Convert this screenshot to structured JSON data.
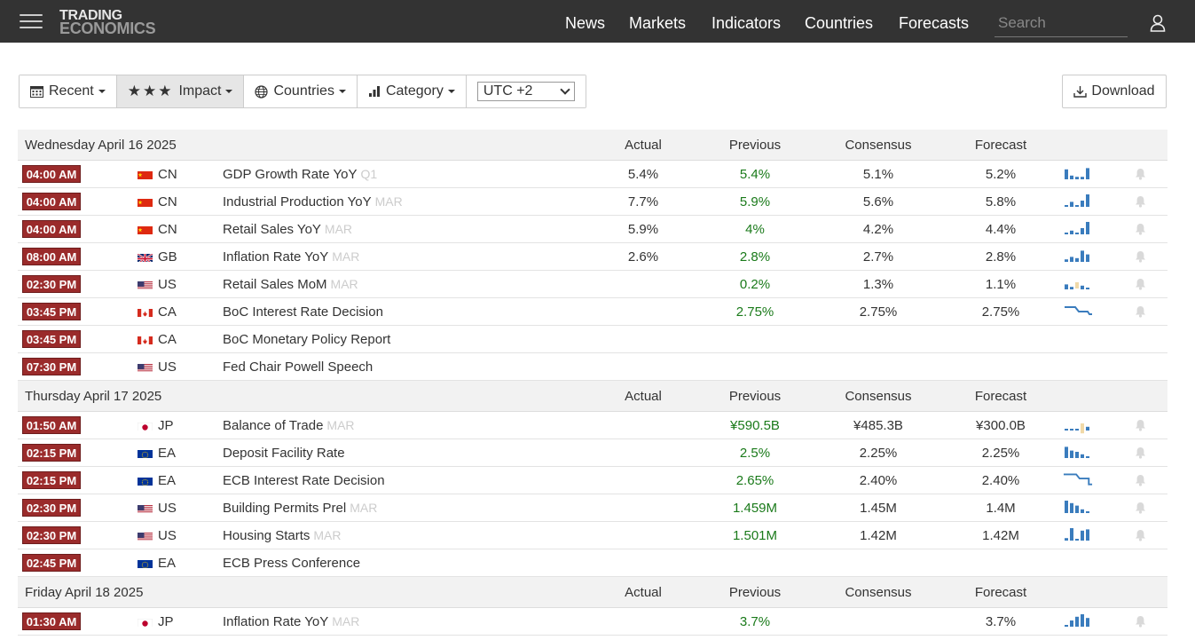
{
  "nav": {
    "logo_line1": "TRADING",
    "logo_line2": "ECONOMICS",
    "links": [
      "News",
      "Markets",
      "Indicators",
      "Countries",
      "Forecasts"
    ],
    "search_placeholder": "Search"
  },
  "toolbar": {
    "recent": "Recent",
    "impact": "Impact",
    "countries": "Countries",
    "category": "Category",
    "timezone": "UTC +2",
    "download": "Download"
  },
  "columns": {
    "actual": "Actual",
    "previous": "Previous",
    "consensus": "Consensus",
    "forecast": "Forecast"
  },
  "days": [
    {
      "date": "Wednesday April 16 2025",
      "events": [
        {
          "time": "04:00 AM",
          "country": "CN",
          "flag": "cn",
          "event": "GDP Growth Rate YoY",
          "ref": "Q1",
          "actual": "5.4%",
          "previous": "5.4%",
          "consensus": "5.1%",
          "forecast": "5.2%",
          "spark": [
            0.8,
            0.3,
            0.2,
            0.2,
            0.9
          ]
        },
        {
          "time": "04:00 AM",
          "country": "CN",
          "flag": "cn",
          "event": "Industrial Production YoY",
          "ref": "MAR",
          "actual": "7.7%",
          "previous": "5.9%",
          "consensus": "5.6%",
          "forecast": "5.8%",
          "spark": [
            0.1,
            0.4,
            0.1,
            0.5,
            1.0
          ]
        },
        {
          "time": "04:00 AM",
          "country": "CN",
          "flag": "cn",
          "event": "Retail Sales YoY",
          "ref": "MAR",
          "actual": "5.9%",
          "previous": "4%",
          "consensus": "4.2%",
          "forecast": "4.4%",
          "spark": [
            0.1,
            0.3,
            0.1,
            0.5,
            1.0
          ]
        },
        {
          "time": "08:00 AM",
          "country": "GB",
          "flag": "gb",
          "event": "Inflation Rate YoY",
          "ref": "MAR",
          "actual": "2.6%",
          "previous": "2.8%",
          "consensus": "2.7%",
          "forecast": "2.8%",
          "spark": [
            0.2,
            0.4,
            0.3,
            0.9,
            0.6
          ]
        },
        {
          "time": "02:30 PM",
          "country": "US",
          "flag": "us",
          "event": "Retail Sales MoM",
          "ref": "MAR",
          "actual": "",
          "previous": "0.2%",
          "consensus": "1.3%",
          "forecast": "1.1%",
          "spark": [
            0.4,
            0.2,
            -0.5,
            0.3,
            0.1
          ]
        },
        {
          "time": "03:45 PM",
          "country": "CA",
          "flag": "ca",
          "event": "BoC Interest Rate Decision",
          "ref": "",
          "actual": "",
          "previous": "2.75%",
          "consensus": "2.75%",
          "forecast": "2.75%",
          "spark": "step"
        },
        {
          "time": "03:45 PM",
          "country": "CA",
          "flag": "ca",
          "event": "BoC Monetary Policy Report",
          "ref": "",
          "actual": "",
          "previous": "",
          "consensus": "",
          "forecast": "",
          "spark": null
        },
        {
          "time": "07:30 PM",
          "country": "US",
          "flag": "us",
          "event": "Fed Chair Powell Speech",
          "ref": "",
          "actual": "",
          "previous": "",
          "consensus": "",
          "forecast": "",
          "spark": null
        }
      ]
    },
    {
      "date": "Thursday April 17 2025",
      "events": [
        {
          "time": "01:50 AM",
          "country": "JP",
          "flag": "jp",
          "event": "Balance of Trade",
          "ref": "MAR",
          "actual": "",
          "previous": "¥590.5B",
          "consensus": "¥485.3B",
          "forecast": "¥300.0B",
          "spark": [
            0.0,
            0.1,
            0.1,
            -0.8,
            0.3
          ]
        },
        {
          "time": "02:15 PM",
          "country": "EA",
          "flag": "eu",
          "event": "Deposit Facility Rate",
          "ref": "",
          "actual": "",
          "previous": "2.5%",
          "consensus": "2.25%",
          "forecast": "2.25%",
          "spark": [
            0.9,
            0.6,
            0.5,
            0.3,
            0.1
          ]
        },
        {
          "time": "02:15 PM",
          "country": "EA",
          "flag": "eu",
          "event": "ECB Interest Rate Decision",
          "ref": "",
          "actual": "",
          "previous": "2.65%",
          "consensus": "2.40%",
          "forecast": "2.40%",
          "spark": "step2"
        },
        {
          "time": "02:30 PM",
          "country": "US",
          "flag": "us",
          "event": "Building Permits Prel",
          "ref": "MAR",
          "actual": "",
          "previous": "1.459M",
          "consensus": "1.45M",
          "forecast": "1.4M",
          "spark": [
            1.0,
            0.8,
            0.6,
            0.3,
            0.1
          ]
        },
        {
          "time": "02:30 PM",
          "country": "US",
          "flag": "us",
          "event": "Housing Starts",
          "ref": "MAR",
          "actual": "",
          "previous": "1.501M",
          "consensus": "1.42M",
          "forecast": "1.42M",
          "spark": [
            0.2,
            1.0,
            0.1,
            0.8,
            0.9
          ]
        },
        {
          "time": "02:45 PM",
          "country": "EA",
          "flag": "eu",
          "event": "ECB Press Conference",
          "ref": "",
          "actual": "",
          "previous": "",
          "consensus": "",
          "forecast": "",
          "spark": null
        }
      ]
    },
    {
      "date": "Friday April 18 2025",
      "events": [
        {
          "time": "01:30 AM",
          "country": "JP",
          "flag": "jp",
          "event": "Inflation Rate YoY",
          "ref": "MAR",
          "actual": "",
          "previous": "3.7%",
          "consensus": "",
          "forecast": "3.7%",
          "spark": [
            0.1,
            0.5,
            0.8,
            1.0,
            0.7
          ]
        }
      ]
    }
  ],
  "colors": {
    "nav_bg": "#333333",
    "time_badge": "#9a2b2b",
    "green": "#1a7a1a",
    "spark_blue": "#3a7cbd",
    "spark_tan": "#f0d9a8"
  }
}
